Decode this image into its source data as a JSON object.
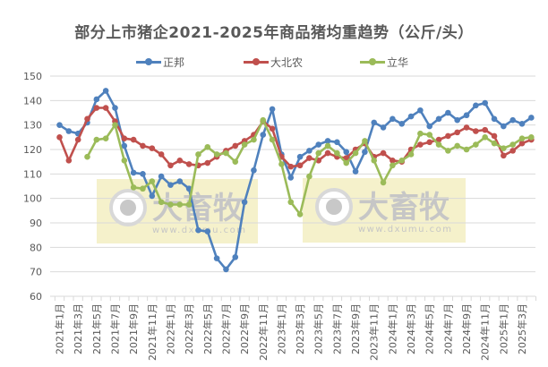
{
  "chart_data": {
    "type": "line",
    "title": "部分上市猪企2021-2025年商品猪均重趋势（公斤/头）",
    "xlabel": "",
    "ylabel": "",
    "ylim": [
      60,
      150
    ],
    "yticks": [
      60,
      70,
      80,
      90,
      100,
      110,
      120,
      130,
      140,
      150
    ],
    "grid": true,
    "legend_position": "top",
    "x": [
      "2021年1月",
      "2021年2月",
      "2021年3月",
      "2021年4月",
      "2021年5月",
      "2021年6月",
      "2021年7月",
      "2021年8月",
      "2021年9月",
      "2021年10月",
      "2021年11月",
      "2021年12月",
      "2022年1月",
      "2022年2月",
      "2022年3月",
      "2022年4月",
      "2022年5月",
      "2022年6月",
      "2022年7月",
      "2022年8月",
      "2022年9月",
      "2022年10月",
      "2022年11月",
      "2022年12月",
      "2023年1月",
      "2023年2月",
      "2023年3月",
      "2023年4月",
      "2023年5月",
      "2023年6月",
      "2023年7月",
      "2023年8月",
      "2023年9月",
      "2023年10月",
      "2023年11月",
      "2023年12月",
      "2024年1月",
      "2024年2月",
      "2024年3月",
      "2024年4月",
      "2024年5月",
      "2024年6月",
      "2024年7月",
      "2024年8月",
      "2024年9月",
      "2024年10月",
      "2024年11月",
      "2024年12月",
      "2025年1月",
      "2025年2月",
      "2025年3月",
      "2025年4月"
    ],
    "xtick_labels": [
      "2021年1月",
      "2021年3月",
      "2021年5月",
      "2021年7月",
      "2021年9月",
      "2021年11月",
      "2022年1月",
      "2022年3月",
      "2022年5月",
      "2022年7月",
      "2022年9月",
      "2022年11月",
      "2023年1月",
      "2023年3月",
      "2023年5月",
      "2023年7月",
      "2023年9月",
      "2023年11月",
      "2024年1月",
      "2024年3月",
      "2024年5月",
      "2024年7月",
      "2024年9月",
      "2024年11月",
      "2025年1月",
      "2025年3月"
    ],
    "series": [
      {
        "name": "正邦",
        "color": "#4F81BD",
        "values": [
          130,
          127.5,
          126.5,
          131,
          140.5,
          144,
          137,
          121.5,
          110.5,
          110,
          101,
          109,
          105.5,
          107,
          104,
          87,
          86.5,
          75.5,
          71,
          76,
          98.5,
          111.5,
          126,
          136.5,
          118,
          108.5,
          117,
          119.5,
          122,
          123.5,
          123,
          119,
          111,
          119,
          131,
          129,
          132.5,
          130.5,
          133.5,
          136,
          129.5,
          132.5,
          135,
          132,
          134,
          138,
          139,
          132.5,
          129.5,
          132,
          130.5,
          133
        ]
      },
      {
        "name": "大北农",
        "color": "#C0504D",
        "values": [
          125,
          115.5,
          124,
          132.5,
          137,
          137,
          131.5,
          124.5,
          124,
          121.5,
          120.5,
          118,
          113.5,
          115.5,
          114,
          113.5,
          114.5,
          117,
          119.5,
          121.5,
          123.5,
          126,
          131.5,
          128.5,
          117,
          113,
          113.5,
          116.5,
          115.5,
          118.5,
          117,
          116.5,
          120,
          122.5,
          117,
          118.5,
          115.5,
          115,
          120,
          122,
          123,
          124,
          125.5,
          127,
          129,
          127.5,
          128,
          125.5,
          117.5,
          119.5,
          122.5,
          124
        ]
      },
      {
        "name": "立华",
        "color": "#9BBB59",
        "values": [
          null,
          null,
          null,
          117,
          124,
          124.5,
          130,
          115.5,
          104.5,
          104,
          107,
          98.5,
          97.5,
          97.5,
          97.5,
          118,
          121,
          118,
          118.5,
          115,
          122,
          124,
          132,
          124,
          114,
          98.5,
          93.5,
          109,
          118.5,
          121.5,
          118.5,
          114.5,
          118.5,
          123.5,
          115.5,
          106.5,
          113.5,
          115.5,
          118,
          126.5,
          126,
          122,
          119.5,
          121.5,
          120,
          122,
          125,
          122.5,
          120.5,
          122,
          124.5,
          125
        ]
      }
    ]
  },
  "watermarks": [
    {
      "brand": "大畜牧",
      "url": "www.dxumu.com"
    },
    {
      "brand": "大畜牧",
      "url": "www.dxumu.com"
    }
  ],
  "colors": {
    "grid": "#D9D9D9",
    "axis_text": "#595959",
    "watermark_bg": "#F3EFC2"
  }
}
